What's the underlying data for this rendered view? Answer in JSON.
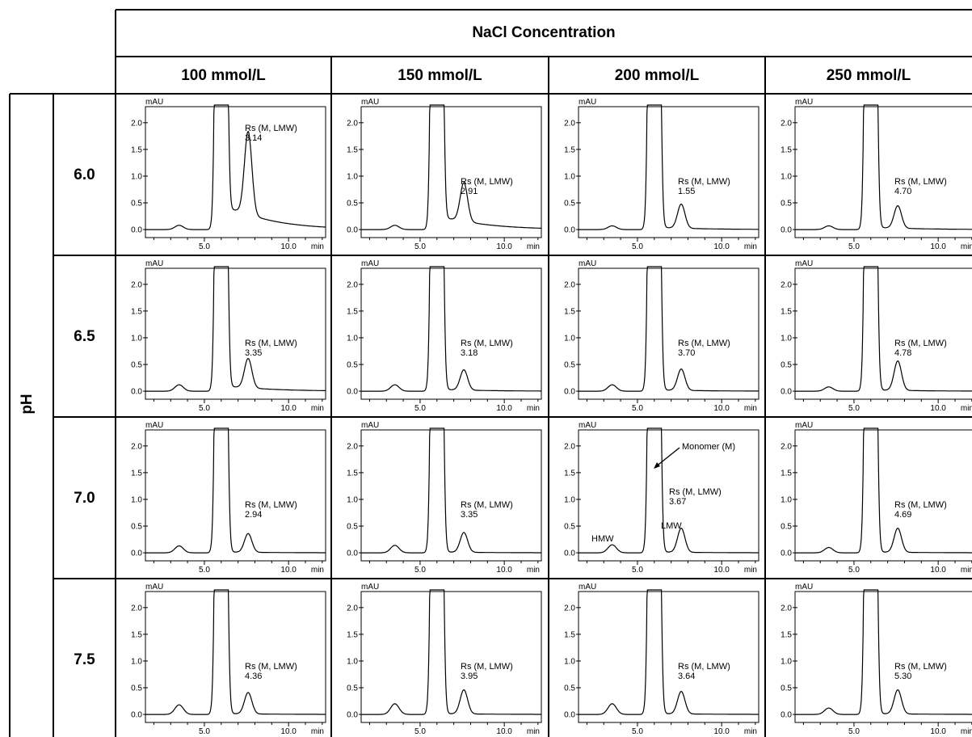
{
  "figure": {
    "header": "NaCl Concentration",
    "row_axis_label": "pH",
    "columns": [
      "100 mmol/L",
      "150 mmol/L",
      "200 mmol/L",
      "250 mmol/L"
    ],
    "rows": [
      "6.0",
      "6.5",
      "7.0",
      "7.5"
    ]
  },
  "chart_data": {
    "type": "line",
    "title": "NaCl Concentration",
    "ylabel": "mAU",
    "xlabel": "min",
    "x_ticks": [
      "5.0",
      "10.0"
    ],
    "y_ticks": [
      "0.0",
      "0.5",
      "1.0",
      "1.5",
      "2.0"
    ],
    "xlim": [
      1.5,
      12.2
    ],
    "ylim": [
      -0.15,
      2.3
    ],
    "resolution_label": "Rs (M, LMW)",
    "panels": [
      {
        "ph": "6.0",
        "nacl": "100 mmol/L",
        "rs": "3.14",
        "lmw_peak": 1.55,
        "hmw_peak": 0.08,
        "tail": 0.55
      },
      {
        "ph": "6.0",
        "nacl": "150 mmol/L",
        "rs": "2.91",
        "lmw_peak": 0.72,
        "hmw_peak": 0.08,
        "tail": 0.3
      },
      {
        "ph": "6.0",
        "nacl": "200 mmol/L",
        "rs": "1.55",
        "lmw_peak": 0.45,
        "hmw_peak": 0.07,
        "tail": 0.05
      },
      {
        "ph": "6.0",
        "nacl": "250 mmol/L",
        "rs": "4.70",
        "lmw_peak": 0.42,
        "hmw_peak": 0.07,
        "tail": 0.05
      },
      {
        "ph": "6.5",
        "nacl": "100 mmol/L",
        "rs": "3.35",
        "lmw_peak": 0.55,
        "hmw_peak": 0.12,
        "tail": 0.12
      },
      {
        "ph": "6.5",
        "nacl": "150 mmol/L",
        "rs": "3.18",
        "lmw_peak": 0.38,
        "hmw_peak": 0.12,
        "tail": 0.04
      },
      {
        "ph": "6.5",
        "nacl": "200 mmol/L",
        "rs": "3.70",
        "lmw_peak": 0.4,
        "hmw_peak": 0.12,
        "tail": 0.03
      },
      {
        "ph": "6.5",
        "nacl": "250 mmol/L",
        "rs": "4.78",
        "lmw_peak": 0.55,
        "hmw_peak": 0.08,
        "tail": 0.03
      },
      {
        "ph": "7.0",
        "nacl": "100 mmol/L",
        "rs": "2.94",
        "lmw_peak": 0.35,
        "hmw_peak": 0.13,
        "tail": 0.02
      },
      {
        "ph": "7.0",
        "nacl": "150 mmol/L",
        "rs": "3.35",
        "lmw_peak": 0.37,
        "hmw_peak": 0.14,
        "tail": 0.02
      },
      {
        "ph": "7.0",
        "nacl": "200 mmol/L",
        "rs": "3.67",
        "lmw_peak": 0.45,
        "hmw_peak": 0.15,
        "tail": 0.02
      },
      {
        "ph": "7.0",
        "nacl": "250 mmol/L",
        "rs": "4.69",
        "lmw_peak": 0.45,
        "hmw_peak": 0.1,
        "tail": 0.02
      },
      {
        "ph": "7.5",
        "nacl": "100 mmol/L",
        "rs": "4.36",
        "lmw_peak": 0.4,
        "hmw_peak": 0.18,
        "tail": 0.02
      },
      {
        "ph": "7.5",
        "nacl": "150 mmol/L",
        "rs": "3.95",
        "lmw_peak": 0.45,
        "hmw_peak": 0.2,
        "tail": 0.02
      },
      {
        "ph": "7.5",
        "nacl": "200 mmol/L",
        "rs": "3.64",
        "lmw_peak": 0.42,
        "hmw_peak": 0.2,
        "tail": 0.02
      },
      {
        "ph": "7.5",
        "nacl": "250 mmol/L",
        "rs": "5.30",
        "lmw_peak": 0.45,
        "hmw_peak": 0.12,
        "tail": 0.02
      }
    ],
    "annotations": {
      "panel": "7.0 / 200 mmol/L",
      "monomer": "Monomer (M)",
      "lmw": "LMW",
      "hmw": "HMW"
    }
  }
}
